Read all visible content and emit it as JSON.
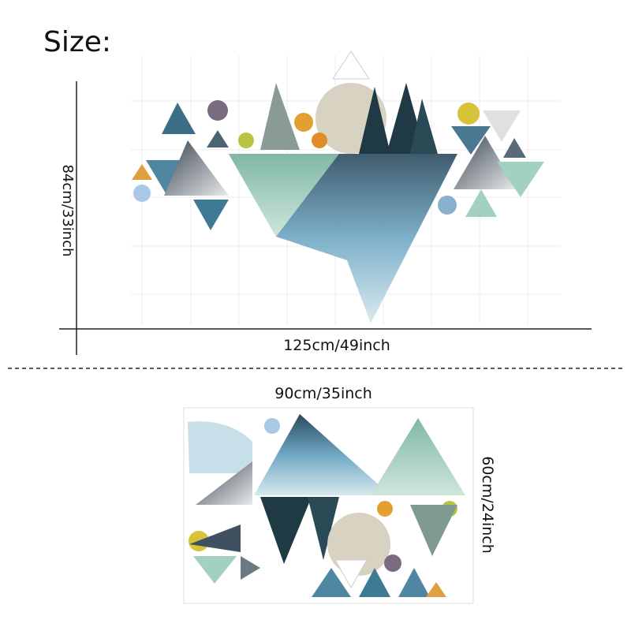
{
  "header": {
    "title": "Size:"
  },
  "large": {
    "height_label": "84cm/33inch",
    "width_label": "125cm/49inch"
  },
  "small": {
    "width_label": "90cm/35inch",
    "height_label": "60cm/24inch"
  }
}
